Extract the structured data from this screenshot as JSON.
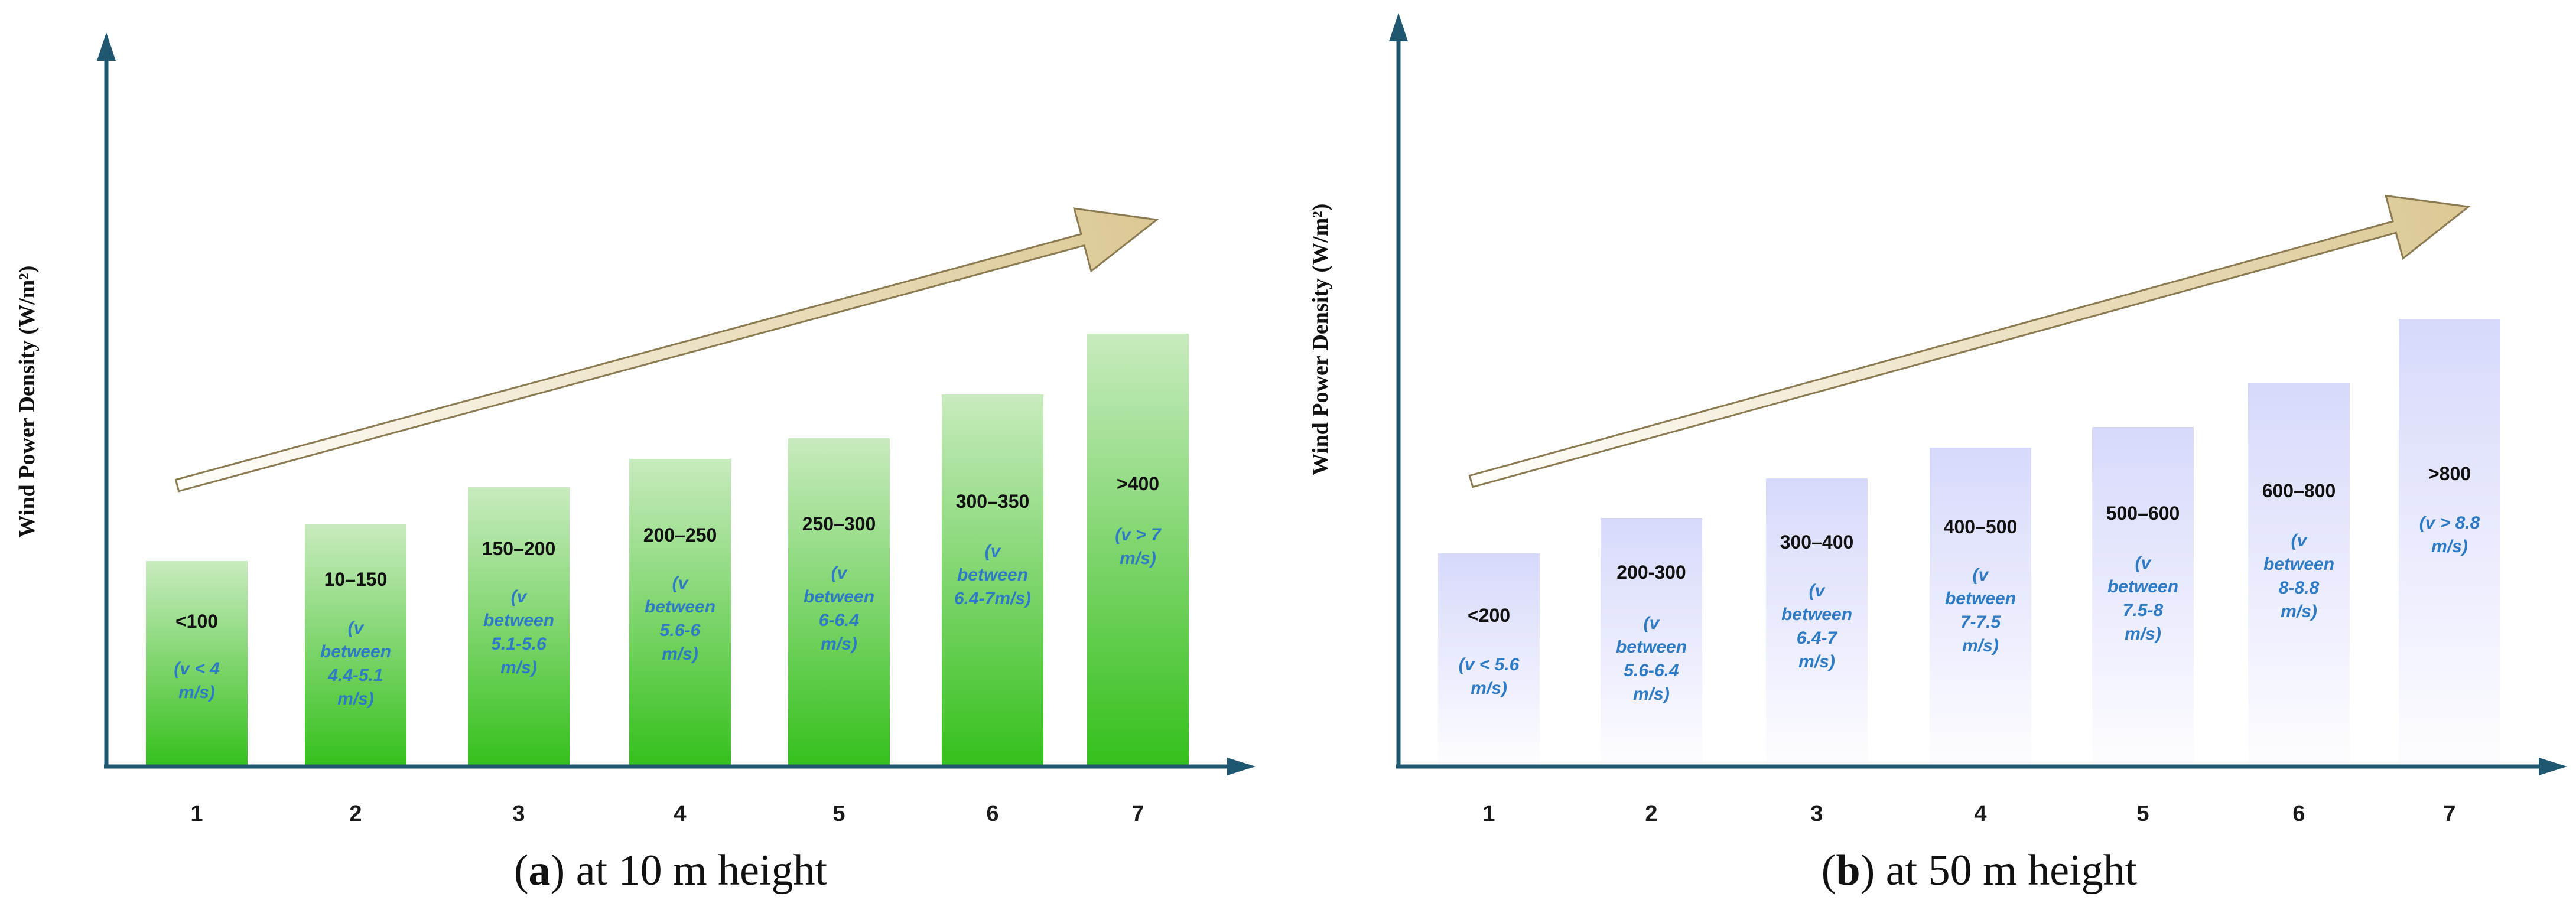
{
  "colors": {
    "axis": "#1f5670",
    "note_text": "#2e7bc4",
    "panel_a_bar_top": "#c8ebbe",
    "panel_a_bar_bottom": "#35c01c",
    "panel_b_bar_top": "#d7d9fb",
    "panel_b_bar_bottom": "#fdfdff",
    "arrow_start": "#fffefa",
    "arrow_end": "#dcc894",
    "arrow_stroke": "#8a7a52"
  },
  "chart_data": [
    {
      "type": "bar",
      "panel": "a",
      "caption_letter": "a",
      "caption_text": " at 10 m height",
      "ylabel": "Wind Power Density (W/m²)",
      "categories": [
        "1",
        "2",
        "3",
        "4",
        "5",
        "6",
        "7"
      ],
      "values": [
        1,
        2,
        3,
        4,
        5,
        6,
        7
      ],
      "labels": [
        "<100",
        "10–150",
        "150–200",
        "200–250",
        "250–300",
        "300–350",
        ">400"
      ],
      "notes": [
        [
          "(v < 4",
          "m/s)"
        ],
        [
          "(v",
          "between",
          "4.4-5.1",
          "m/s)"
        ],
        [
          "(v",
          "between",
          "5.1-5.6",
          "m/s)"
        ],
        [
          "(v",
          "between",
          "5.6-6",
          "m/s)"
        ],
        [
          "(v",
          "between",
          "6-6.4",
          "m/s)"
        ],
        [
          "(v",
          "between",
          "6.4-7m/s)"
        ],
        [
          "(v > 7",
          "m/s)"
        ]
      ],
      "trend_arrow": true
    },
    {
      "type": "bar",
      "panel": "b",
      "caption_letter": "b",
      "caption_text": " at 50 m height",
      "ylabel": "Wind Power Density (W/m²)",
      "categories": [
        "1",
        "2",
        "3",
        "4",
        "5",
        "6",
        "7"
      ],
      "values": [
        1,
        2,
        3,
        4,
        5,
        6,
        7
      ],
      "labels": [
        "<200",
        "200-300",
        "300–400",
        "400–500",
        "500–600",
        "600–800",
        ">800"
      ],
      "notes": [
        [
          "(v < 5.6",
          "m/s)"
        ],
        [
          "(v",
          "between",
          "5.6-6.4",
          "m/s)"
        ],
        [
          "(v",
          "between",
          "6.4-7",
          "m/s)"
        ],
        [
          "(v",
          "between",
          "7-7.5",
          "m/s)"
        ],
        [
          "(v",
          "between",
          "7.5-8",
          "m/s)"
        ],
        [
          "(v",
          "between",
          "8-8.8",
          "m/s)"
        ],
        [
          "(v > 8.8",
          "m/s)"
        ]
      ],
      "trend_arrow": true
    }
  ]
}
